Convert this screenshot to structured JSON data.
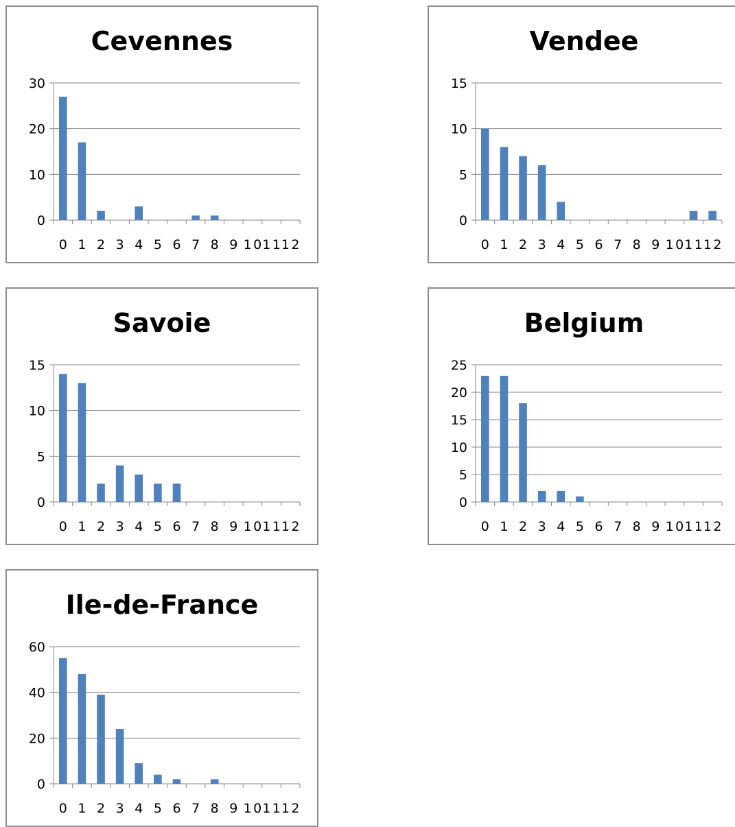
{
  "colors": {
    "bar": "#4f81bd",
    "grid": "#868686",
    "axis": "#868686",
    "frame": "#8c8c8c",
    "text": "#000000"
  },
  "chart_data": [
    {
      "type": "bar",
      "title": "Cevennes",
      "categories": [
        "0",
        "1",
        "2",
        "3",
        "4",
        "5",
        "6",
        "7",
        "8",
        "9",
        "10",
        "11",
        "12"
      ],
      "values": [
        27,
        17,
        2,
        0,
        3,
        0,
        0,
        1,
        1,
        0,
        0,
        0,
        0
      ],
      "ylim": [
        0,
        30
      ],
      "yticks": [
        0,
        10,
        20,
        30
      ],
      "grid": true,
      "legend": "none"
    },
    {
      "type": "bar",
      "title": "Vendee",
      "categories": [
        "0",
        "1",
        "2",
        "3",
        "4",
        "5",
        "6",
        "7",
        "8",
        "9",
        "10",
        "11",
        "12"
      ],
      "values": [
        10,
        8,
        7,
        6,
        2,
        0,
        0,
        0,
        0,
        0,
        0,
        1,
        1
      ],
      "ylim": [
        0,
        15
      ],
      "yticks": [
        0,
        5,
        10,
        15
      ],
      "grid": true,
      "legend": "none"
    },
    {
      "type": "bar",
      "title": "Savoie",
      "categories": [
        "0",
        "1",
        "2",
        "3",
        "4",
        "5",
        "6",
        "7",
        "8",
        "9",
        "10",
        "11",
        "12"
      ],
      "values": [
        14,
        13,
        2,
        4,
        3,
        2,
        2,
        0,
        0,
        0,
        0,
        0,
        0
      ],
      "ylim": [
        0,
        15
      ],
      "yticks": [
        0,
        5,
        10,
        15
      ],
      "grid": true,
      "legend": "none"
    },
    {
      "type": "bar",
      "title": "Belgium",
      "categories": [
        "0",
        "1",
        "2",
        "3",
        "4",
        "5",
        "6",
        "7",
        "8",
        "9",
        "10",
        "11",
        "12"
      ],
      "values": [
        23,
        23,
        18,
        2,
        2,
        1,
        0,
        0,
        0,
        0,
        0,
        0,
        0
      ],
      "ylim": [
        0,
        25
      ],
      "yticks": [
        0,
        5,
        10,
        15,
        20,
        25
      ],
      "grid": true,
      "legend": "none"
    },
    {
      "type": "bar",
      "title": "Ile-de-France",
      "categories": [
        "0",
        "1",
        "2",
        "3",
        "4",
        "5",
        "6",
        "7",
        "8",
        "9",
        "10",
        "11",
        "12"
      ],
      "values": [
        55,
        48,
        39,
        24,
        9,
        4,
        2,
        0,
        2,
        0,
        0,
        0,
        0
      ],
      "ylim": [
        0,
        60
      ],
      "yticks": [
        0,
        20,
        40,
        60
      ],
      "grid": true,
      "legend": "none"
    }
  ]
}
